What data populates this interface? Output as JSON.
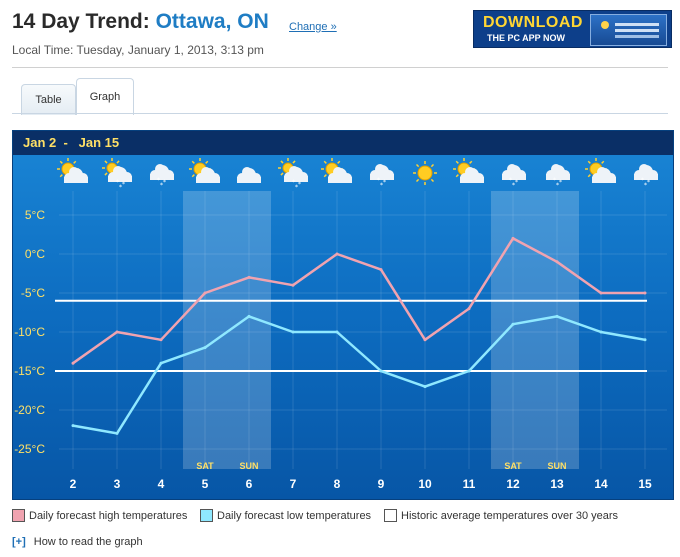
{
  "header": {
    "title_prefix": "14 Day Trend:",
    "city": "Ottawa, ON",
    "change_link": "Change »",
    "local_time": "Local Time: Tuesday, January 1, 2013, 3:13 pm"
  },
  "ad": {
    "line1": "DOWNLOAD",
    "line2": "THE PC APP NOW"
  },
  "tabs": [
    {
      "label": "Table",
      "active": false
    },
    {
      "label": "Graph",
      "active": true
    }
  ],
  "chart_header": {
    "start": "Jan 2",
    "sep": "-",
    "end": "Jan 15"
  },
  "weekend_labels": [
    "SAT",
    "SUN",
    "SAT",
    "SUN"
  ],
  "colors": {
    "high": "#f0a3b0",
    "low": "#8fe8ff",
    "average": "#ffffff",
    "background": "#0a5fb4"
  },
  "chart_data": {
    "type": "line",
    "x": [
      2,
      3,
      4,
      5,
      6,
      7,
      8,
      9,
      10,
      11,
      12,
      13,
      14,
      15
    ],
    "x_tick_labels": [
      "2",
      "3",
      "4",
      "5",
      "6",
      "7",
      "8",
      "9",
      "10",
      "11",
      "12",
      "13",
      "14",
      "15"
    ],
    "y_tick_labels": [
      "5°C",
      "0°C",
      "-5°C",
      "-10°C",
      "-15°C",
      "-20°C",
      "-25°C"
    ],
    "y_ticks": [
      5,
      0,
      -5,
      -10,
      -15,
      -20,
      -25
    ],
    "ylim": [
      -28.5,
      7
    ],
    "series": [
      {
        "name": "Daily forecast high temperatures",
        "key": "high",
        "values": [
          -14,
          -10,
          -11,
          -5,
          -3,
          -4,
          0,
          -2,
          -11,
          -7,
          2,
          -1,
          -5,
          -5
        ]
      },
      {
        "name": "Daily forecast low temperatures",
        "key": "low",
        "values": [
          -22,
          -23,
          -14,
          -12,
          -8,
          -10,
          -10,
          -15,
          -17,
          -15,
          -9,
          -8,
          -10,
          -11
        ]
      },
      {
        "name": "Historic average temperatures over 30 years",
        "key": "average",
        "average_high": -6,
        "average_low": -15
      }
    ],
    "weekend_days": [
      5,
      6,
      12,
      13
    ],
    "weather_icons": [
      "sun-cloud",
      "sun-cloud-snow",
      "cloud-snow",
      "sun-cloud",
      "cloud",
      "sun-cloud-snow",
      "sun-cloud",
      "cloud-snow",
      "sun",
      "sun-cloud",
      "cloud-snow",
      "cloud-snow",
      "sun-cloud",
      "cloud-snow"
    ]
  },
  "legend": [
    {
      "label": "Daily forecast high temperatures",
      "color": "#f0a3b0"
    },
    {
      "label": "Daily forecast low temperatures",
      "color": "#8fe8ff"
    },
    {
      "label": "Historic average temperatures over 30 years",
      "color": "#ffffff"
    }
  ],
  "how_to": {
    "plus": "[+]",
    "label": "How to read the graph"
  }
}
